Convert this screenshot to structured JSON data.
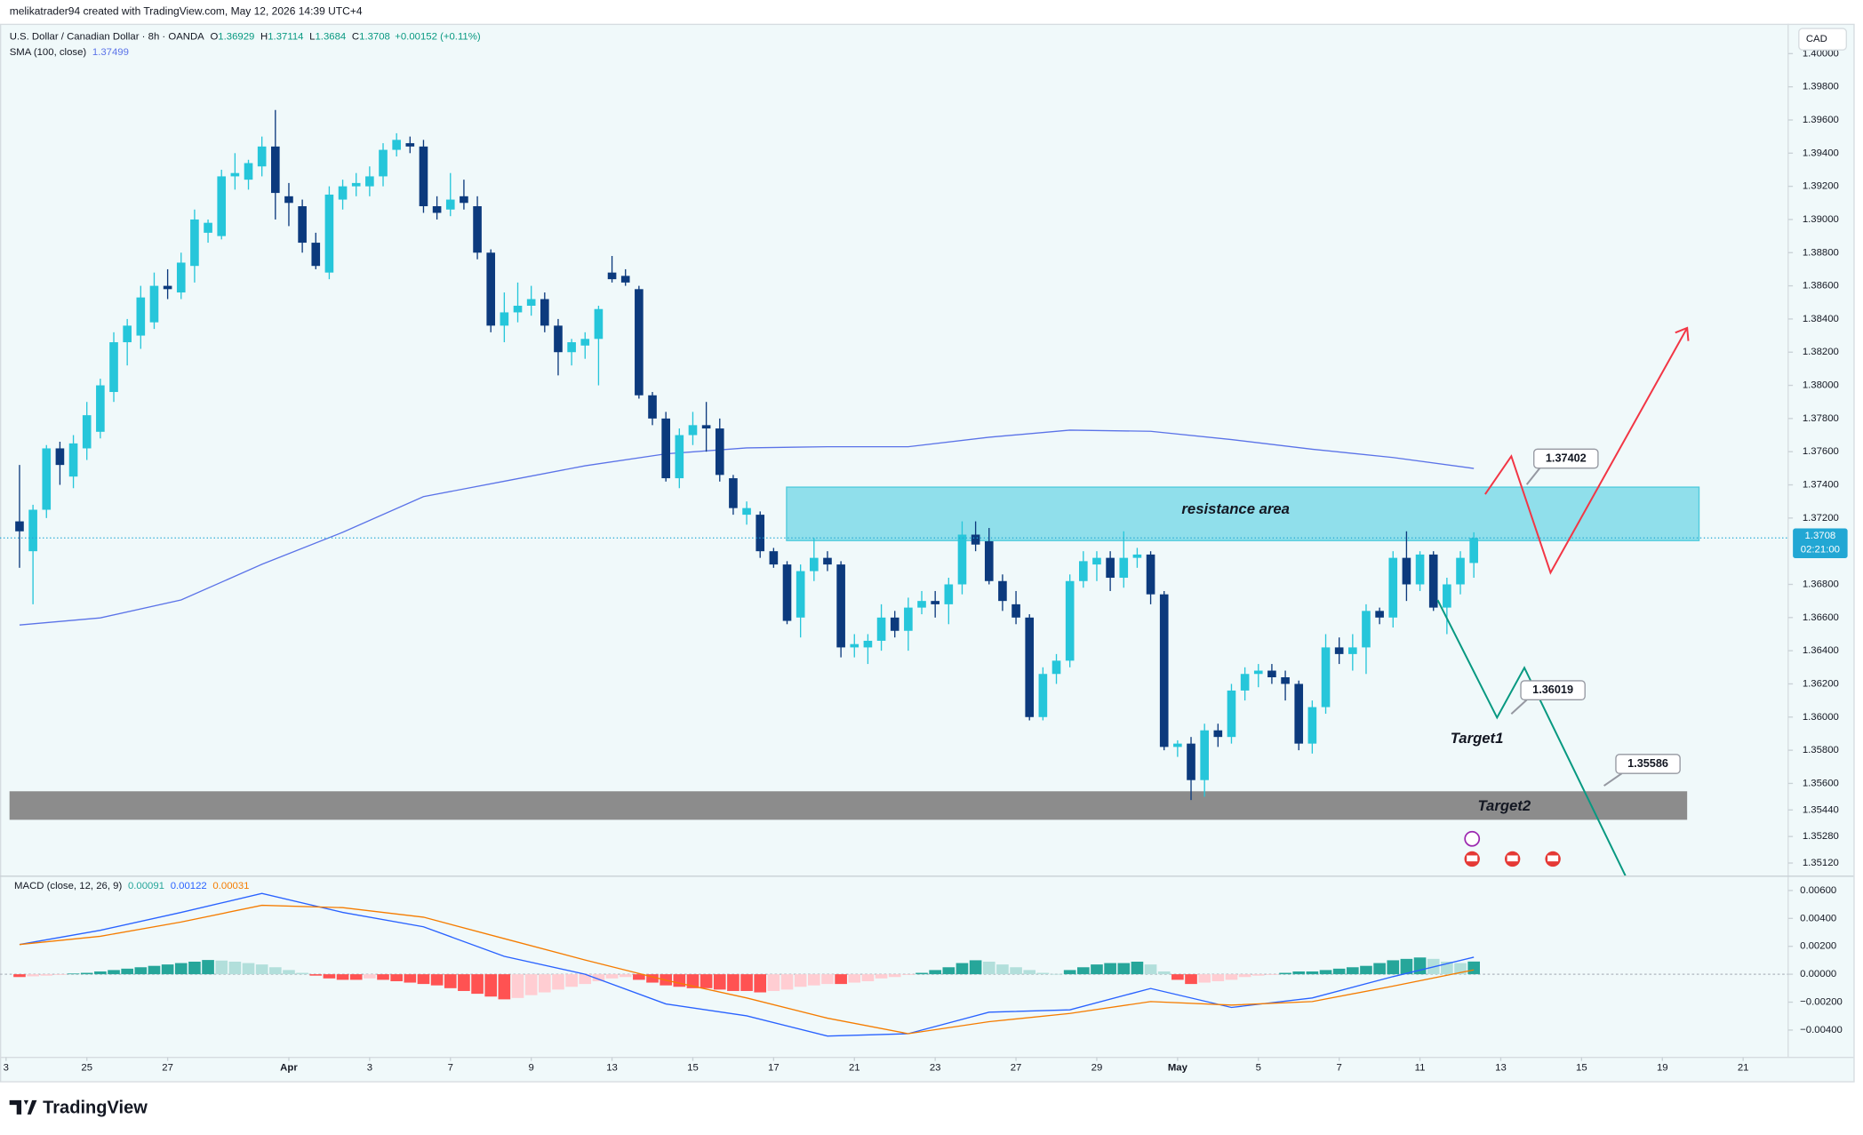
{
  "header": {
    "credit": "melikatrader94 created with TradingView.com, May 12, 2026 14:39 UTC+4"
  },
  "chart_data": [
    {
      "type": "candlestick",
      "title": "U.S. Dollar / Canadian Dollar · 8h · OANDA",
      "ohlc_labels": [
        "O",
        "H",
        "L",
        "C"
      ],
      "change": "+0.00152 (+0.11%)",
      "currency": "CAD",
      "countdown": "02:21:00",
      "colors": {
        "up": "#26c6da",
        "down": "#0c3a7d",
        "text": "#089981",
        "last": "#22a7d4"
      },
      "open": [
        1.3718,
        1.37,
        1.3725,
        1.3762,
        1.3745,
        1.3762,
        1.3772,
        1.3796,
        1.3826,
        1.383,
        1.3838,
        1.386,
        1.3856,
        1.3872,
        1.3892,
        1.389,
        1.3926,
        1.3924,
        1.3932,
        1.3944,
        1.3914,
        1.3908,
        1.3886,
        1.3868,
        1.3912,
        1.392,
        1.392,
        1.3926,
        1.3942,
        1.3946,
        1.3944,
        1.3908,
        1.3906,
        1.3914,
        1.3908,
        1.388,
        1.3836,
        1.3844,
        1.3848,
        1.3852,
        1.3836,
        1.382,
        1.3824,
        1.3828,
        1.3868,
        1.3866,
        1.3858,
        1.3794,
        1.378,
        1.3744,
        1.377,
        1.3776,
        1.3774,
        1.3744,
        1.3722,
        1.3722,
        1.37,
        1.3692,
        1.366,
        1.3688,
        1.3696,
        1.3692,
        1.3642,
        1.3642,
        1.3646,
        1.366,
        1.3652,
        1.3666,
        1.367,
        1.3668,
        1.368,
        1.371,
        1.3706,
        1.3682,
        1.3668,
        1.366,
        1.36,
        1.3626,
        1.3634,
        1.3682,
        1.3692,
        1.3696,
        1.3684,
        1.3696,
        1.3698,
        1.3674,
        1.3582,
        1.3584,
        1.3562,
        1.3592,
        1.3588,
        1.3616,
        1.3626,
        1.3628,
        1.3624,
        1.362,
        1.3584,
        1.3606,
        1.3642,
        1.3638,
        1.3642,
        1.3664,
        1.366,
        1.3696,
        1.368,
        1.3698,
        1.3666,
        1.368,
        1.36929
      ],
      "high": [
        1.3752,
        1.3728,
        1.3764,
        1.3766,
        1.377,
        1.379,
        1.3804,
        1.3832,
        1.384,
        1.386,
        1.3868,
        1.387,
        1.388,
        1.3906,
        1.39,
        1.393,
        1.394,
        1.3936,
        1.395,
        1.3966,
        1.3922,
        1.3912,
        1.3892,
        1.392,
        1.3924,
        1.3928,
        1.3932,
        1.3946,
        1.3952,
        1.395,
        1.3948,
        1.3914,
        1.3928,
        1.3924,
        1.3914,
        1.3882,
        1.3856,
        1.3862,
        1.386,
        1.3856,
        1.384,
        1.3828,
        1.3832,
        1.3848,
        1.3878,
        1.387,
        1.386,
        1.3796,
        1.3784,
        1.3774,
        1.3784,
        1.379,
        1.378,
        1.3746,
        1.373,
        1.3724,
        1.3702,
        1.3694,
        1.3692,
        1.3708,
        1.37,
        1.3694,
        1.365,
        1.365,
        1.3668,
        1.3664,
        1.3672,
        1.3676,
        1.3676,
        1.3684,
        1.3718,
        1.3718,
        1.3714,
        1.3686,
        1.3676,
        1.3662,
        1.363,
        1.3638,
        1.3686,
        1.37,
        1.37,
        1.37,
        1.3712,
        1.3702,
        1.37,
        1.3676,
        1.3586,
        1.3588,
        1.3596,
        1.3596,
        1.362,
        1.363,
        1.3632,
        1.3632,
        1.3628,
        1.3622,
        1.361,
        1.365,
        1.3648,
        1.365,
        1.3668,
        1.3666,
        1.37,
        1.3712,
        1.37,
        1.37,
        1.3684,
        1.37,
        1.37114
      ],
      "low": [
        1.369,
        1.3668,
        1.372,
        1.374,
        1.3738,
        1.3755,
        1.3768,
        1.379,
        1.3812,
        1.3822,
        1.3834,
        1.3852,
        1.3852,
        1.3862,
        1.3886,
        1.3888,
        1.3918,
        1.3918,
        1.3926,
        1.39,
        1.3896,
        1.388,
        1.387,
        1.3864,
        1.3906,
        1.3914,
        1.3914,
        1.392,
        1.3938,
        1.394,
        1.3904,
        1.39,
        1.3902,
        1.3906,
        1.3876,
        1.3832,
        1.3826,
        1.3838,
        1.3842,
        1.3832,
        1.3806,
        1.3812,
        1.3816,
        1.38,
        1.3862,
        1.386,
        1.3792,
        1.3776,
        1.3742,
        1.3738,
        1.3764,
        1.376,
        1.3742,
        1.3722,
        1.3716,
        1.3696,
        1.369,
        1.3656,
        1.3648,
        1.3682,
        1.3688,
        1.3636,
        1.3636,
        1.3632,
        1.364,
        1.3648,
        1.364,
        1.3662,
        1.366,
        1.3656,
        1.3674,
        1.37,
        1.368,
        1.3664,
        1.3656,
        1.3598,
        1.3598,
        1.362,
        1.363,
        1.3678,
        1.3682,
        1.3676,
        1.3678,
        1.369,
        1.3668,
        1.358,
        1.3576,
        1.355,
        1.3552,
        1.3582,
        1.3584,
        1.361,
        1.3618,
        1.362,
        1.361,
        1.358,
        1.3578,
        1.3602,
        1.3632,
        1.3628,
        1.3626,
        1.3656,
        1.3654,
        1.367,
        1.3676,
        1.3664,
        1.365,
        1.3674,
        1.3684
      ],
      "close": [
        1.3712,
        1.3725,
        1.3762,
        1.3752,
        1.3765,
        1.3782,
        1.38,
        1.3826,
        1.3836,
        1.3853,
        1.386,
        1.3858,
        1.3874,
        1.39,
        1.3898,
        1.3926,
        1.3928,
        1.3934,
        1.3944,
        1.3916,
        1.391,
        1.3886,
        1.3872,
        1.3915,
        1.392,
        1.3922,
        1.3926,
        1.3942,
        1.3948,
        1.3944,
        1.3908,
        1.3904,
        1.3912,
        1.391,
        1.388,
        1.3836,
        1.3844,
        1.3848,
        1.3852,
        1.3836,
        1.382,
        1.3826,
        1.3828,
        1.3846,
        1.3864,
        1.3862,
        1.3794,
        1.378,
        1.3744,
        1.377,
        1.3776,
        1.3774,
        1.3746,
        1.3726,
        1.3726,
        1.37,
        1.3692,
        1.3658,
        1.3688,
        1.3696,
        1.3692,
        1.3642,
        1.3644,
        1.3646,
        1.366,
        1.3652,
        1.3666,
        1.367,
        1.3668,
        1.368,
        1.371,
        1.3704,
        1.3682,
        1.367,
        1.366,
        1.36,
        1.3626,
        1.3634,
        1.3682,
        1.3694,
        1.3696,
        1.3684,
        1.3696,
        1.3698,
        1.3674,
        1.3582,
        1.3584,
        1.3562,
        1.3592,
        1.3588,
        1.3616,
        1.3626,
        1.3628,
        1.3624,
        1.362,
        1.3584,
        1.3606,
        1.3642,
        1.3638,
        1.3642,
        1.3664,
        1.366,
        1.3696,
        1.368,
        1.3698,
        1.3666,
        1.368,
        1.3696,
        1.3708
      ],
      "sma": {
        "name": "SMA (100, close)",
        "color": "#5b73e8",
        "x": [
          0,
          6,
          12,
          18,
          24,
          30,
          36,
          42,
          48,
          54,
          60,
          66,
          72,
          78,
          84,
          90,
          96,
          102,
          108
        ],
        "values": [
          1.36555,
          1.36598,
          1.36706,
          1.36921,
          1.37114,
          1.37329,
          1.37422,
          1.37515,
          1.37587,
          1.37623,
          1.3763,
          1.3763,
          1.37687,
          1.3773,
          1.37723,
          1.37673,
          1.37615,
          1.37565,
          1.37499
        ]
      },
      "annotations": {
        "zone_label": "resistance area",
        "target1": "Target1",
        "target2": "Target2",
        "price_labels": [
          1.37402,
          1.36019,
          1.35586
        ]
      },
      "xlim": [
        -1.45,
        130.9
      ],
      "ylim": [
        1.35044,
        1.4018
      ],
      "grid": false,
      "yticks": [
        {
          "value": 1.4,
          "label": "1.40000"
        },
        {
          "value": 1.398,
          "label": "1.39800"
        },
        {
          "value": 1.396,
          "label": "1.39600"
        },
        {
          "value": 1.394,
          "label": "1.39400"
        },
        {
          "value": 1.392,
          "label": "1.39200"
        },
        {
          "value": 1.39,
          "label": "1.39000"
        },
        {
          "value": 1.388,
          "label": "1.38800"
        },
        {
          "value": 1.386,
          "label": "1.38600"
        },
        {
          "value": 1.384,
          "label": "1.38400"
        },
        {
          "value": 1.382,
          "label": "1.38200"
        },
        {
          "value": 1.38,
          "label": "1.38000"
        },
        {
          "value": 1.378,
          "label": "1.37800"
        },
        {
          "value": 1.376,
          "label": "1.37600"
        },
        {
          "value": 1.374,
          "label": "1.37400"
        },
        {
          "value": 1.372,
          "label": "1.37200"
        },
        {
          "value": 1.368,
          "label": "1.36800"
        },
        {
          "value": 1.366,
          "label": "1.36600"
        },
        {
          "value": 1.364,
          "label": "1.36400"
        },
        {
          "value": 1.362,
          "label": "1.36200"
        },
        {
          "value": 1.36,
          "label": "1.36000"
        },
        {
          "value": 1.358,
          "label": "1.35800"
        },
        {
          "value": 1.356,
          "label": "1.35600"
        },
        {
          "value": 1.3544,
          "label": "1.35440"
        },
        {
          "value": 1.3528,
          "label": "1.35280"
        },
        {
          "value": 1.3512,
          "label": "1.35120"
        }
      ],
      "xticks": [
        {
          "value": -1,
          "label": "3"
        },
        {
          "value": 5,
          "label": "25"
        },
        {
          "value": 11,
          "label": "27"
        },
        {
          "value": 20,
          "label": "Apr"
        },
        {
          "value": 26,
          "label": "3"
        },
        {
          "value": 32,
          "label": "7"
        },
        {
          "value": 38,
          "label": "9"
        },
        {
          "value": 44,
          "label": "13"
        },
        {
          "value": 50,
          "label": "15"
        },
        {
          "value": 56,
          "label": "17"
        },
        {
          "value": 62,
          "label": "21"
        },
        {
          "value": 68,
          "label": "23"
        },
        {
          "value": 74,
          "label": "27"
        },
        {
          "value": 80,
          "label": "29"
        },
        {
          "value": 86,
          "label": "May"
        },
        {
          "value": 92,
          "label": "5"
        },
        {
          "value": 98,
          "label": "7"
        },
        {
          "value": 104,
          "label": "11"
        },
        {
          "value": 110,
          "label": "13"
        },
        {
          "value": 116,
          "label": "15"
        },
        {
          "value": 122,
          "label": "19"
        },
        {
          "value": 128,
          "label": "21"
        }
      ]
    },
    {
      "type": "macd",
      "title": "MACD (close, 12, 26, 9)",
      "histogram": {
        "colors": [
          "#26a69a",
          "#b2dfdb",
          "#ff5252",
          "#ffcdd2"
        ],
        "values": [
          -0.0002,
          -0.00015,
          -0.0001,
          -5e-05,
          5e-05,
          0.0001,
          0.0002,
          0.0003,
          0.0004,
          0.0005,
          0.0006,
          0.0007,
          0.0008,
          0.0009,
          0.00102,
          0.00098,
          0.0009,
          0.0008,
          0.0007,
          0.0005,
          0.0003,
          0.0001,
          -0.0001,
          -0.0003,
          -0.0004,
          -0.0004,
          -0.0003,
          -0.0004,
          -0.0005,
          -0.0006,
          -0.0007,
          -0.0008,
          -0.001,
          -0.0012,
          -0.0014,
          -0.0016,
          -0.0018,
          -0.0017,
          -0.0015,
          -0.0013,
          -0.0011,
          -0.0009,
          -0.0007,
          -0.0005,
          -0.0003,
          -0.0002,
          -0.0004,
          -0.0006,
          -0.0008,
          -0.0009,
          -0.001,
          -0.001,
          -0.0011,
          -0.0012,
          -0.0012,
          -0.0013,
          -0.0012,
          -0.0011,
          -0.0009,
          -0.0008,
          -0.0007,
          -0.0007,
          -0.0006,
          -0.0005,
          -0.0003,
          -0.0002,
          -5e-05,
          0.0001,
          0.0003,
          0.0005,
          0.0008,
          0.001,
          0.0009,
          0.0007,
          0.0005,
          0.0003,
          0.0001,
          2e-05,
          0.0003,
          0.0005,
          0.0007,
          0.0008,
          0.0008,
          0.0009,
          0.0007,
          0.0002,
          -0.0004,
          -0.0007,
          -0.0006,
          -0.0005,
          -0.0004,
          -0.0002,
          -0.0001,
          -5e-05,
          0.0001,
          0.0002,
          0.0002,
          0.0003,
          0.0004,
          0.0005,
          0.0006,
          0.0008,
          0.001,
          0.0011,
          0.0012,
          0.0011,
          0.0009,
          0.0008,
          0.00091
        ]
      },
      "x": [
        0,
        6,
        12,
        18,
        24,
        30,
        36,
        42,
        48,
        54,
        60,
        66,
        72,
        78,
        84,
        90,
        96,
        102,
        108
      ],
      "series": [
        {
          "color": "#2962ff",
          "values": [
            0.00213,
            0.00315,
            0.00443,
            0.00579,
            0.00443,
            0.0034,
            0.00128,
            0,
            -0.00213,
            -0.00298,
            -0.00443,
            -0.00426,
            -0.00272,
            -0.00255,
            -0.00102,
            -0.00238,
            -0.0017,
            -0.00017,
            0.00122
          ]
        },
        {
          "color": "#f57c00",
          "values": [
            0.00213,
            0.00272,
            0.00374,
            0.00494,
            0.00477,
            0.00409,
            0.00255,
            0.00102,
            -0.00043,
            -0.0017,
            -0.00315,
            -0.00426,
            -0.0034,
            -0.00281,
            -0.00196,
            -0.00221,
            -0.00196,
            -0.00085,
            0.00031
          ]
        }
      ],
      "xlim": [
        -1.45,
        130.9
      ],
      "ylim": [
        -0.00596,
        0.00698
      ],
      "grid": false,
      "yticks": [
        {
          "value": 0.006,
          "label": "0.00600"
        },
        {
          "value": 0.004,
          "label": "0.00400"
        },
        {
          "value": 0.002,
          "label": "0.00200"
        },
        {
          "value": 0,
          "label": "0.00000"
        },
        {
          "value": -0.002,
          "label": "−0.00200"
        },
        {
          "value": -0.004,
          "label": "−0.00400"
        }
      ]
    }
  ],
  "footer": {
    "logo": "TradingView"
  }
}
